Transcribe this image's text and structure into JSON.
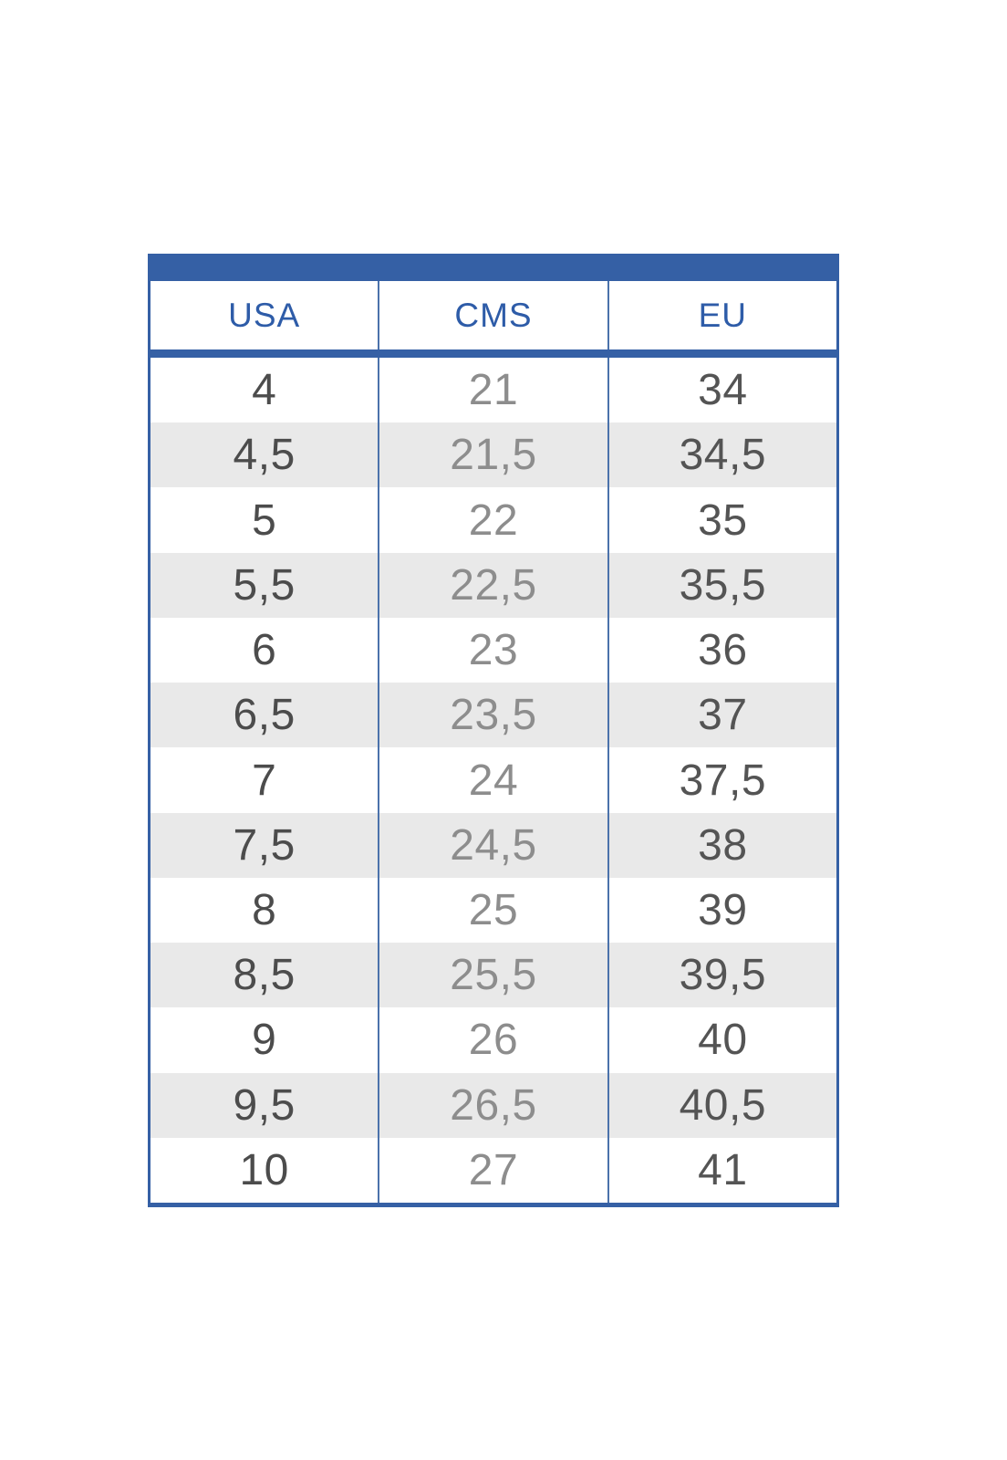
{
  "chart_data": {
    "type": "table",
    "columns": [
      "USA",
      "CMS",
      "EU"
    ],
    "rows": [
      [
        "4",
        "21",
        "34"
      ],
      [
        "4,5",
        "21,5",
        "34,5"
      ],
      [
        "5",
        "22",
        "35"
      ],
      [
        "5,5",
        "22,5",
        "35,5"
      ],
      [
        "6",
        "23",
        "36"
      ],
      [
        "6,5",
        "23,5",
        "37"
      ],
      [
        "7",
        "24",
        "37,5"
      ],
      [
        "7,5",
        "24,5",
        "38"
      ],
      [
        "8",
        "25",
        "39"
      ],
      [
        "8,5",
        "25,5",
        "39,5"
      ],
      [
        "9",
        "26",
        "40"
      ],
      [
        "9,5",
        "26,5",
        "40,5"
      ],
      [
        "10",
        "27",
        "41"
      ]
    ]
  },
  "colors": {
    "accent": "#3560a5",
    "divider": "#4b72ab",
    "stripe": "#e9e9e9",
    "header_text": "#2e5ca8",
    "col_usa": "#4c4c4c",
    "col_cms": "#8d8d8d",
    "col_eu": "#545454"
  }
}
